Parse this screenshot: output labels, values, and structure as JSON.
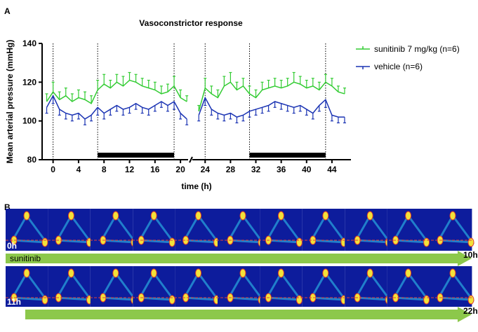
{
  "panel_a": {
    "letter": "A"
  },
  "chart_data": {
    "type": "line",
    "title": "Vasoconstrictor response",
    "xlabel": "time (h)",
    "ylabel": "Mean arterial pressure (mmHg)",
    "x": [
      -1,
      0,
      1,
      2,
      3,
      4,
      5,
      6,
      7,
      8,
      9,
      10,
      11,
      12,
      13,
      14,
      15,
      16,
      17,
      18,
      19,
      20,
      21,
      22,
      23,
      24,
      25,
      26,
      27,
      28,
      29,
      30,
      31,
      32,
      33,
      34,
      35,
      36,
      37,
      38,
      39,
      40,
      41,
      42,
      43,
      44,
      45,
      46
    ],
    "series": [
      {
        "name": "sunitinib 7 mg/kg (n=6)",
        "color": "#33cc33",
        "values": [
          110,
          115,
          111,
          113,
          110,
          112,
          111,
          109,
          116,
          119,
          117,
          120,
          118,
          121,
          120,
          118,
          117,
          116,
          114,
          115,
          118,
          112,
          110,
          null,
          105,
          117,
          114,
          112,
          118,
          120,
          116,
          118,
          114,
          112,
          116,
          117,
          118,
          117,
          118,
          120,
          119,
          117,
          118,
          116,
          120,
          118,
          115,
          114
        ],
        "errors": [
          4,
          5,
          4,
          4,
          4,
          4,
          4,
          4,
          5,
          5,
          4,
          4,
          5,
          4,
          4,
          4,
          4,
          4,
          4,
          4,
          5,
          4,
          3,
          null,
          3,
          5,
          4,
          4,
          5,
          5,
          4,
          4,
          4,
          4,
          4,
          4,
          4,
          4,
          4,
          5,
          4,
          4,
          4,
          4,
          4,
          4,
          3,
          3
        ]
      },
      {
        "name": "vehicle (n=6)",
        "color": "#1a33b3",
        "values": [
          107,
          113,
          106,
          104,
          103,
          104,
          101,
          103,
          107,
          104,
          106,
          108,
          106,
          107,
          109,
          107,
          106,
          108,
          110,
          108,
          110,
          104,
          101,
          null,
          103,
          112,
          106,
          104,
          103,
          104,
          102,
          103,
          105,
          106,
          107,
          108,
          110,
          109,
          108,
          107,
          108,
          106,
          104,
          108,
          111,
          103,
          102,
          102
        ],
        "errors": [
          3,
          4,
          3,
          3,
          3,
          3,
          3,
          3,
          4,
          3,
          3,
          3,
          3,
          3,
          3,
          3,
          3,
          3,
          3,
          3,
          4,
          3,
          3,
          null,
          3,
          4,
          3,
          3,
          3,
          3,
          3,
          3,
          3,
          3,
          3,
          3,
          3,
          3,
          3,
          3,
          3,
          3,
          3,
          3,
          4,
          3,
          3,
          3
        ]
      }
    ],
    "ylim": [
      80,
      140
    ],
    "yticks": [
      80,
      100,
      120,
      140
    ],
    "x_segments": [
      [
        -1.5,
        21.2
      ],
      [
        22.2,
        47
      ]
    ],
    "xticks": [
      0,
      4,
      8,
      12,
      16,
      20,
      24,
      28,
      32,
      36,
      40,
      44
    ],
    "vlines": [
      0,
      7,
      19,
      24,
      31,
      43
    ],
    "dark_periods": [
      [
        7,
        19
      ],
      [
        31,
        43
      ]
    ],
    "legend": "right"
  },
  "panel_b": {
    "letter": "B",
    "rows": [
      {
        "start": "0h",
        "end": "10h",
        "label": "sunitinib"
      },
      {
        "start": "11h",
        "end": "22h"
      }
    ]
  }
}
